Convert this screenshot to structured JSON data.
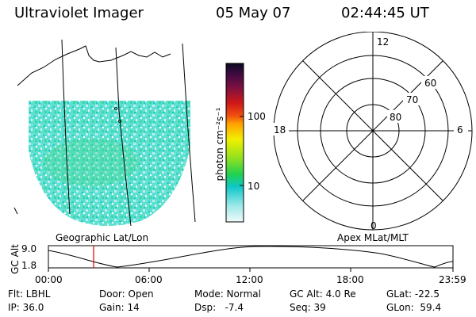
{
  "header": {
    "instrument": "Ultraviolet Imager",
    "date": "05 May 07",
    "time": "02:44:45 UT"
  },
  "colorbar": {
    "unit_label": "photon cm⁻²s⁻¹",
    "tick_high": "100",
    "tick_low": "10"
  },
  "polar_plot": {
    "mlt_labels": {
      "top": "12",
      "bottom": "0",
      "left": "18",
      "right": "6"
    },
    "lat_labels": [
      "60",
      "70",
      "80"
    ]
  },
  "panel_labels": {
    "geographic": "Geographic Lat/Lon",
    "apex": "Apex MLat/MLT"
  },
  "altitude_plot": {
    "ylabel": "GC Alt",
    "y_top": "9.0",
    "y_bottom": "1.8",
    "x_ticks": [
      "00:00",
      "06:00",
      "12:00",
      "18:00",
      "23:59"
    ]
  },
  "info": {
    "filter": "Flt: LBHL",
    "ip": "IP: 36.0",
    "door": "Door: Open",
    "gain": "Gain: 14",
    "mode": "Mode: Normal",
    "dsp": "Dsp:   -7.4",
    "gc_alt": "GC Alt: 4.0 Re",
    "seq": "Seq: 39",
    "glat": "GLat: -22.5",
    "glon": "GLon:  59.4"
  }
}
